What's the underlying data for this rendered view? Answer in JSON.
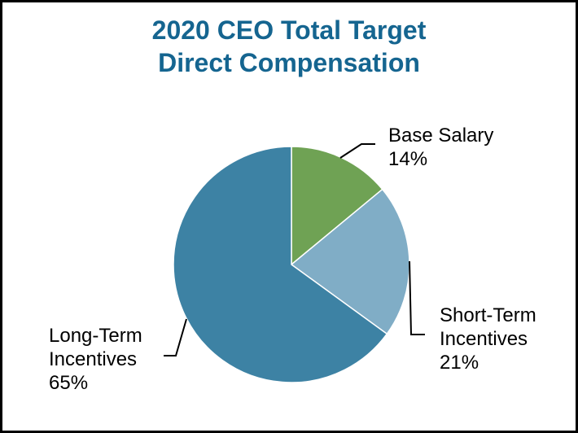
{
  "window": {
    "background": "#ffffff",
    "frame_border_color": "#000000"
  },
  "chart_data": {
    "type": "pie",
    "title": "2020 CEO Total Target Direct Compensation",
    "title_lines": [
      "2020 CEO Total Target",
      "Direct Compensation"
    ],
    "title_color": "#156590",
    "categories": [
      "Base Salary",
      "Short-Term Incentives",
      "Long-Term Incentives"
    ],
    "values": [
      14,
      21,
      65
    ],
    "unit": "%",
    "colors": [
      "#6FA254",
      "#80ADC6",
      "#3D82A4"
    ],
    "slice_border_color": "#FFFFFF",
    "start_angle_deg": 0,
    "direction": "clockwise",
    "legend": "none",
    "label_color": "#000000",
    "leader_line_color": "#000000",
    "callout_labels": [
      {
        "slice": "Base Salary",
        "lines": [
          "Base Salary",
          "14%"
        ]
      },
      {
        "slice": "Short-Term Incentives",
        "lines": [
          "Short-Term",
          "Incentives",
          "21%"
        ]
      },
      {
        "slice": "Long-Term Incentives",
        "lines": [
          "Long-Term",
          "Incentives",
          "65%"
        ]
      }
    ]
  }
}
